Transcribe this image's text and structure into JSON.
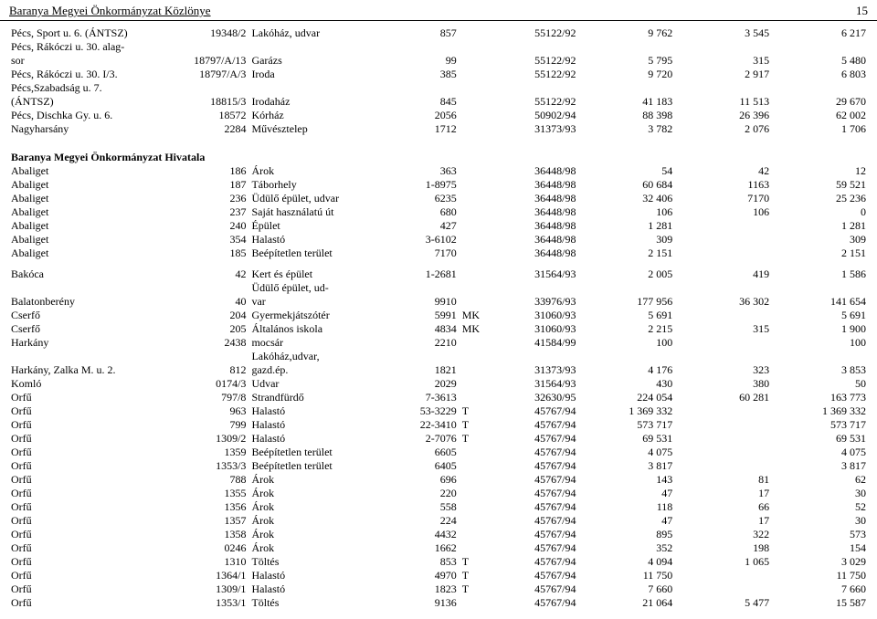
{
  "header": {
    "title": "Baranya Megyei Önkormányzat Közlönye",
    "page": "15"
  },
  "section1": [
    {
      "loc": "Pécs, Sport u. 6. (ÁNTSZ)",
      "ref": "19348/2",
      "desc": "Lakóház, udvar",
      "w": "857",
      "mk": "",
      "code": "55122/92",
      "a": "9 762",
      "b": "3 545",
      "c": "6 217"
    },
    {
      "loc": "Pécs, Rákóczi u. 30. alag-",
      "ref": "",
      "desc": "",
      "w": "",
      "mk": "",
      "code": "",
      "a": "",
      "b": "",
      "c": ""
    },
    {
      "loc": "sor",
      "ref": "18797/A/13",
      "desc": "Garázs",
      "w": "99",
      "mk": "",
      "code": "55122/92",
      "a": "5 795",
      "b": "315",
      "c": "5 480"
    },
    {
      "loc": "Pécs, Rákóczi u. 30. I/3.",
      "ref": "18797/A/3",
      "desc": "Iroda",
      "w": "385",
      "mk": "",
      "code": "55122/92",
      "a": "9 720",
      "b": "2 917",
      "c": "6 803"
    },
    {
      "loc": "Pécs,Szabadság u. 7.",
      "ref": "",
      "desc": "",
      "w": "",
      "mk": "",
      "code": "",
      "a": "",
      "b": "",
      "c": ""
    },
    {
      "loc": "(ÁNTSZ)",
      "ref": "18815/3",
      "desc": "Irodaház",
      "w": "845",
      "mk": "",
      "code": "55122/92",
      "a": "41 183",
      "b": "11 513",
      "c": "29 670"
    },
    {
      "loc": "Pécs, Dischka Gy. u. 6.",
      "ref": "18572",
      "desc": "Kórház",
      "w": "2056",
      "mk": "",
      "code": "50902/94",
      "a": "88 398",
      "b": "26 396",
      "c": "62 002"
    },
    {
      "loc": "Nagyharsány",
      "ref": "2284",
      "desc": "Művésztelep",
      "w": "1712",
      "mk": "",
      "code": "31373/93",
      "a": "3 782",
      "b": "2 076",
      "c": "1 706"
    }
  ],
  "section2_title": "Baranya Megyei Önkormányzat Hivatala",
  "section2": [
    {
      "loc": "Abaliget",
      "ref": "186",
      "desc": "Árok",
      "w": "363",
      "mk": "",
      "code": "36448/98",
      "a": "54",
      "b": "42",
      "c": "12"
    },
    {
      "loc": "Abaliget",
      "ref": "187",
      "desc": "Táborhely",
      "w": "1-8975",
      "mk": "",
      "code": "36448/98",
      "a": "60 684",
      "b": "1163",
      "c": "59 521"
    },
    {
      "loc": "Abaliget",
      "ref": "236",
      "desc": "Üdülő épület, udvar",
      "w": "6235",
      "mk": "",
      "code": "36448/98",
      "a": "32 406",
      "b": "7170",
      "c": "25 236"
    },
    {
      "loc": "Abaliget",
      "ref": "237",
      "desc": "Saját használatú út",
      "w": "680",
      "mk": "",
      "code": "36448/98",
      "a": "106",
      "b": "106",
      "c": "0"
    },
    {
      "loc": "Abaliget",
      "ref": "240",
      "desc": "Épület",
      "w": "427",
      "mk": "",
      "code": "36448/98",
      "a": "1 281",
      "b": "",
      "c": "1 281"
    },
    {
      "loc": "Abaliget",
      "ref": "354",
      "desc": "Halastó",
      "w": "3-6102",
      "mk": "",
      "code": "36448/98",
      "a": "309",
      "b": "",
      "c": "309"
    },
    {
      "loc": "Abaliget",
      "ref": "185",
      "desc": "Beépítetlen terület",
      "w": "7170",
      "mk": "",
      "code": "36448/98",
      "a": "2 151",
      "b": "",
      "c": "2 151"
    }
  ],
  "section3": [
    {
      "loc": "Bakóca",
      "ref": "42",
      "desc": "Kert és épület",
      "w": "1-2681",
      "mk": "",
      "code": "31564/93",
      "a": "2 005",
      "b": "419",
      "c": "1 586"
    },
    {
      "loc": "",
      "ref": "",
      "desc": "Üdülő épület, ud-",
      "w": "",
      "mk": "",
      "code": "",
      "a": "",
      "b": "",
      "c": ""
    },
    {
      "loc": "Balatonberény",
      "ref": "40",
      "desc": "var",
      "w": "9910",
      "mk": "",
      "code": "33976/93",
      "a": "177 956",
      "b": "36 302",
      "c": "141 654"
    },
    {
      "loc": "Cserfő",
      "ref": "204",
      "desc": "Gyermekjátszótér",
      "w": "5991",
      "mk": "MK",
      "code": "31060/93",
      "a": "5 691",
      "b": "",
      "c": "5 691"
    },
    {
      "loc": "Cserfő",
      "ref": "205",
      "desc": "Általános iskola",
      "w": "4834",
      "mk": "MK",
      "code": "31060/93",
      "a": "2 215",
      "b": "315",
      "c": "1 900"
    },
    {
      "loc": "Harkány",
      "ref": "2438",
      "desc": "mocsár",
      "w": "2210",
      "mk": "",
      "code": "41584/99",
      "a": "100",
      "b": "",
      "c": "100"
    },
    {
      "loc": "",
      "ref": "",
      "desc": "Lakóház,udvar,",
      "w": "",
      "mk": "",
      "code": "",
      "a": "",
      "b": "",
      "c": ""
    },
    {
      "loc": "Harkány, Zalka M. u. 2.",
      "ref": "812",
      "desc": "gazd.ép.",
      "w": "1821",
      "mk": "",
      "code": "31373/93",
      "a": "4 176",
      "b": "323",
      "c": "3 853"
    },
    {
      "loc": "Komló",
      "ref": "0174/3",
      "desc": "Udvar",
      "w": "2029",
      "mk": "",
      "code": "31564/93",
      "a": "430",
      "b": "380",
      "c": "50"
    },
    {
      "loc": "Orfű",
      "ref": "797/8",
      "desc": "Strandfürdő",
      "w": "7-3613",
      "mk": "",
      "code": "32630/95",
      "a": "224 054",
      "b": "60 281",
      "c": "163 773"
    },
    {
      "loc": "Orfű",
      "ref": "963",
      "desc": "Halastó",
      "w": "53-3229",
      "mk": "T",
      "code": "45767/94",
      "a": "1 369 332",
      "b": "",
      "c": "1 369 332"
    },
    {
      "loc": "Orfű",
      "ref": "799",
      "desc": "Halastó",
      "w": "22-3410",
      "mk": "T",
      "code": "45767/94",
      "a": "573 717",
      "b": "",
      "c": "573 717"
    },
    {
      "loc": "Orfű",
      "ref": "1309/2",
      "desc": "Halastó",
      "w": "2-7076",
      "mk": "T",
      "code": "45767/94",
      "a": "69 531",
      "b": "",
      "c": "69 531"
    },
    {
      "loc": "Orfű",
      "ref": "1359",
      "desc": "Beépítetlen terület",
      "w": "6605",
      "mk": "",
      "code": "45767/94",
      "a": "4 075",
      "b": "",
      "c": "4 075"
    },
    {
      "loc": "Orfű",
      "ref": "1353/3",
      "desc": "Beépítetlen terület",
      "w": "6405",
      "mk": "",
      "code": "45767/94",
      "a": "3 817",
      "b": "",
      "c": "3 817"
    },
    {
      "loc": "Orfű",
      "ref": "788",
      "desc": "Árok",
      "w": "696",
      "mk": "",
      "code": "45767/94",
      "a": "143",
      "b": "81",
      "c": "62"
    },
    {
      "loc": "Orfű",
      "ref": "1355",
      "desc": "Árok",
      "w": "220",
      "mk": "",
      "code": "45767/94",
      "a": "47",
      "b": "17",
      "c": "30"
    },
    {
      "loc": "Orfű",
      "ref": "1356",
      "desc": "Árok",
      "w": "558",
      "mk": "",
      "code": "45767/94",
      "a": "118",
      "b": "66",
      "c": "52"
    },
    {
      "loc": "Orfű",
      "ref": "1357",
      "desc": "Árok",
      "w": "224",
      "mk": "",
      "code": "45767/94",
      "a": "47",
      "b": "17",
      "c": "30"
    },
    {
      "loc": "Orfű",
      "ref": "1358",
      "desc": "Árok",
      "w": "4432",
      "mk": "",
      "code": "45767/94",
      "a": "895",
      "b": "322",
      "c": "573"
    },
    {
      "loc": "Orfű",
      "ref": "0246",
      "desc": "Árok",
      "w": "1662",
      "mk": "",
      "code": "45767/94",
      "a": "352",
      "b": "198",
      "c": "154"
    },
    {
      "loc": "Orfű",
      "ref": "1310",
      "desc": "Töltés",
      "w": "853",
      "mk": "T",
      "code": "45767/94",
      "a": "4 094",
      "b": "1 065",
      "c": "3 029"
    },
    {
      "loc": "Orfű",
      "ref": "1364/1",
      "desc": "Halastó",
      "w": "4970",
      "mk": "T",
      "code": "45767/94",
      "a": "11 750",
      "b": "",
      "c": "11 750"
    },
    {
      "loc": "Orfű",
      "ref": "1309/1",
      "desc": "Halastó",
      "w": "1823",
      "mk": "T",
      "code": "45767/94",
      "a": "7 660",
      "b": "",
      "c": "7 660"
    },
    {
      "loc": "Orfű",
      "ref": "1353/1",
      "desc": "Töltés",
      "w": "9136",
      "mk": "",
      "code": "45767/94",
      "a": "21 064",
      "b": "5 477",
      "c": "15 587"
    }
  ]
}
